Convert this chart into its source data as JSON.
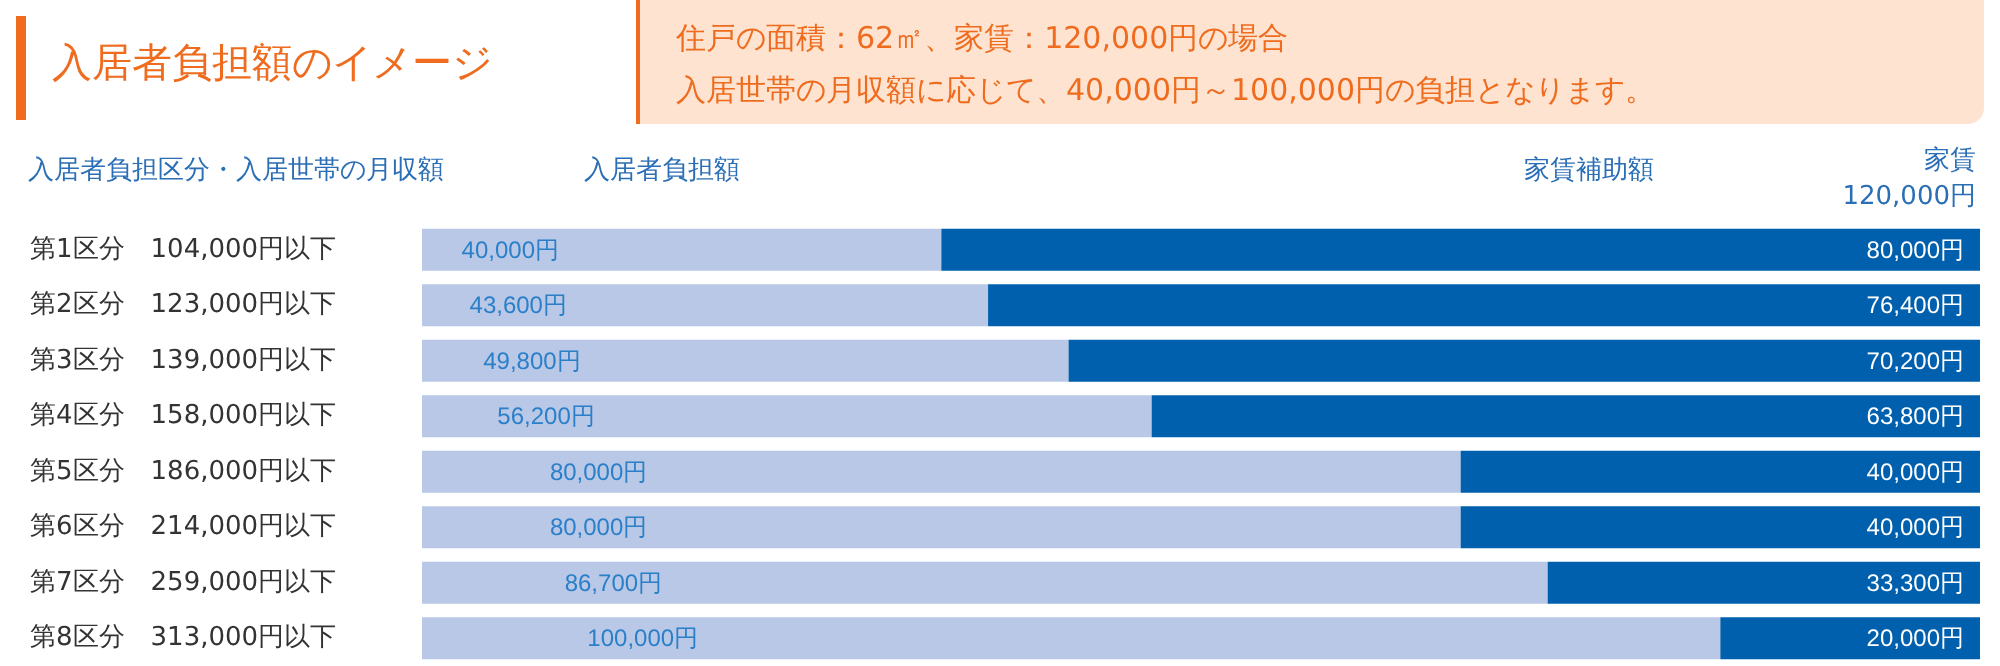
{
  "chart_data": {
    "type": "bar",
    "orientation": "horizontal",
    "stacked": true,
    "title": "入居者負担額のイメージ",
    "ylabel": "入居者負担区分・入居世帯の月収額",
    "annotations": [
      "住戸の面積：62㎡、家賃：120,000円の場合",
      "入居世帯の月収額に応じて、40,000円～100,000円の負担となります。",
      "家賃\n120,000円"
    ],
    "categories": [
      "第1区分　104,000円以下",
      "第2区分　123,000円以下",
      "第3区分　139,000円以下",
      "第4区分　158,000円以下",
      "第5区分　186,000円以下",
      "第6区分　214,000円以下",
      "第7区分　259,000円以下",
      "第8区分　313,000円以下"
    ],
    "xlim": [
      0,
      120000
    ],
    "tick_labels": "y",
    "legend": false,
    "series": [
      {
        "name": "入居者負担額",
        "color": "#b8c8e6",
        "values": [
          40000,
          43600,
          49800,
          56200,
          80000,
          80000,
          86700,
          100000
        ],
        "value_labels": [
          "40,000円",
          "43,600円",
          "49,800円",
          "56,200円",
          "80,000円",
          "80,000円",
          "86,700円",
          "100,000円"
        ]
      },
      {
        "name": "家賃補助額",
        "color": "#0060ad",
        "values": [
          80000,
          76400,
          70200,
          63800,
          40000,
          40000,
          33300,
          20000
        ],
        "value_labels": [
          "80,000円",
          "76,400円",
          "70,200円",
          "63,800円",
          "40,000円",
          "40,000円",
          "33,300円",
          "20,000円"
        ]
      }
    ]
  }
}
